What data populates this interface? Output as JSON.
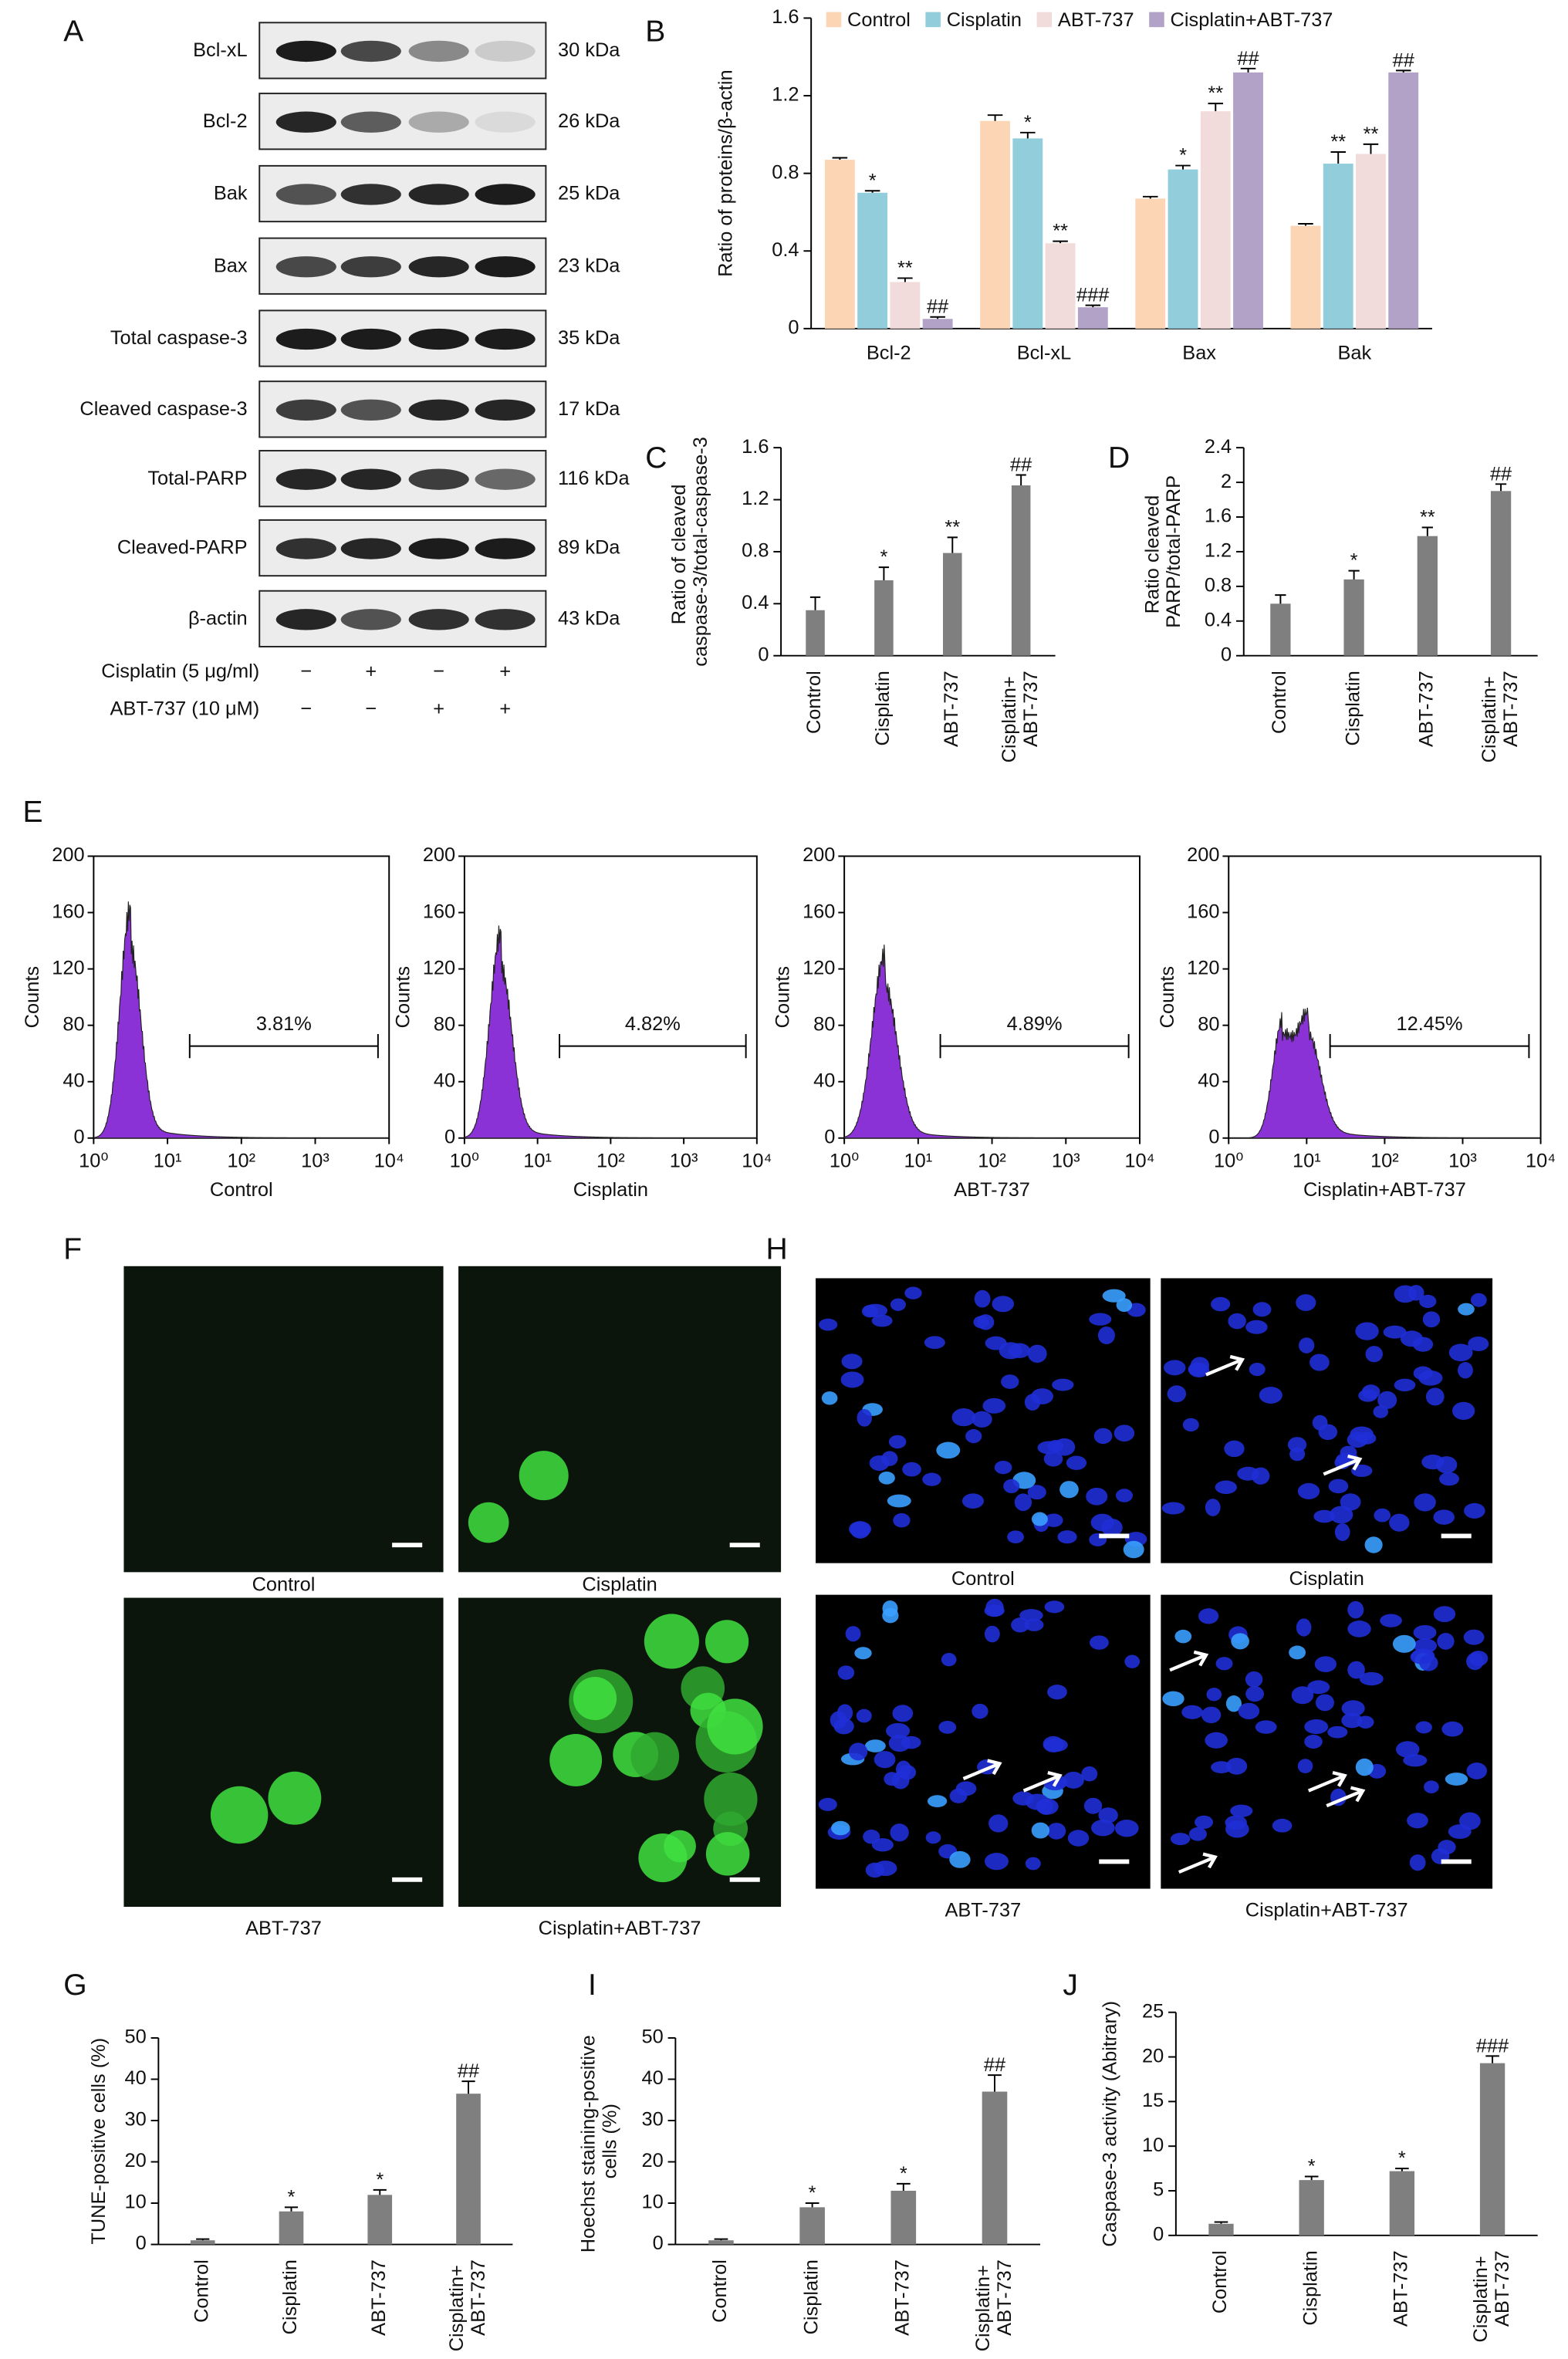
{
  "blot": {
    "label": "A",
    "proteins": [
      {
        "name": "Bcl-xL",
        "size": "30 kDa"
      },
      {
        "name": "Bcl-2",
        "size": "26 kDa"
      },
      {
        "name": "Bak",
        "size": "25 kDa"
      },
      {
        "name": "Bax",
        "size": "23 kDa"
      },
      {
        "name": "Total caspase-3",
        "size": "35 kDa"
      },
      {
        "name": "Cleaved caspase-3",
        "size": "17 kDa"
      },
      {
        "name": "Total-PARP",
        "size": "116 kDa"
      },
      {
        "name": "Cleaved-PARP",
        "size": "89 kDa"
      },
      {
        "name": "β-actin",
        "size": "43 kDa"
      }
    ],
    "treatments": [
      {
        "name": "Cisplatin (5 μg/ml)",
        "signs": [
          "−",
          "+",
          "−",
          "+"
        ]
      },
      {
        "name": "ABT-737 (10 μM)",
        "signs": [
          "−",
          "−",
          "+",
          "+"
        ]
      }
    ]
  },
  "panel_b": {
    "label": "B",
    "type": "bar",
    "ylabel": "Ratio of proteins/β-actin",
    "categories": [
      "Bcl-2",
      "Bcl-xL",
      "Bax",
      "Bak"
    ],
    "series": [
      {
        "name": "Control",
        "color": "#fcd5b4",
        "values": [
          0.87,
          1.07,
          0.67,
          0.53
        ],
        "errors": [
          0.01,
          0.03,
          0.01,
          0.01
        ],
        "annotations": [
          null,
          null,
          null,
          null
        ]
      },
      {
        "name": "Cisplatin",
        "color": "#92cddc",
        "values": [
          0.7,
          0.98,
          0.82,
          0.85
        ],
        "errors": [
          0.01,
          0.03,
          0.02,
          0.06
        ],
        "annotations": [
          "*",
          "*",
          "*",
          "**"
        ]
      },
      {
        "name": "ABT-737",
        "color": "#f2dcdb",
        "values": [
          0.24,
          0.44,
          1.12,
          0.9
        ],
        "errors": [
          0.02,
          0.01,
          0.04,
          0.05
        ],
        "annotations": [
          "**",
          "**",
          "**",
          "**"
        ]
      },
      {
        "name": "Cisplatin+ABT-737",
        "color": "#b3a2c7",
        "values": [
          0.05,
          0.11,
          1.32,
          1.32
        ],
        "errors": [
          0.01,
          0.01,
          0.02,
          0.01
        ],
        "annotations": [
          "##",
          "###",
          "##",
          "##"
        ]
      }
    ],
    "ylim": [
      0,
      1.6
    ],
    "yticks": [
      0,
      0.4,
      0.8,
      1.2,
      1.6
    ],
    "legend": "top"
  },
  "panel_c": {
    "label": "C",
    "type": "bar",
    "ylabel": "Ratio of cleaved caspase-3/total-caspase-3",
    "categories": [
      "Control",
      "Cisplatin",
      "ABT-737",
      "Cisplatin+ ABT-737"
    ],
    "color": "#7f7f7f",
    "values": [
      0.35,
      0.58,
      0.79,
      1.31
    ],
    "errors": [
      0.1,
      0.1,
      0.12,
      0.08
    ],
    "annotations": [
      null,
      "*",
      "**",
      "##"
    ],
    "ylim": [
      0,
      1.6
    ],
    "yticks": [
      0,
      0.4,
      0.8,
      1.2,
      1.6
    ]
  },
  "panel_d": {
    "label": "D",
    "type": "bar",
    "ylabel": "Ratio cleaved PARP/total-PARP",
    "categories": [
      "Control",
      "Cisplatin",
      "ABT-737",
      "Cisplatin+ ABT-737"
    ],
    "color": "#7f7f7f",
    "values": [
      0.6,
      0.88,
      1.38,
      1.9
    ],
    "errors": [
      0.1,
      0.1,
      0.1,
      0.08
    ],
    "annotations": [
      null,
      "*",
      "**",
      "##"
    ],
    "ylim": [
      0,
      2.4
    ],
    "yticks": [
      0,
      0.4,
      0.8,
      1.2,
      1.6,
      2,
      2.4
    ]
  },
  "panel_e": {
    "label": "E",
    "ylabel": "Counts",
    "color": "#8b32d6",
    "ylim": [
      0,
      200
    ],
    "yticks": [
      0,
      40,
      80,
      120,
      160,
      200
    ],
    "xscale": "log",
    "xlim": [
      1,
      10000
    ],
    "xticks": [
      {
        "value": 1,
        "label": "10⁰"
      },
      {
        "value": 10,
        "label": "10¹"
      },
      {
        "value": 100,
        "label": "10²"
      },
      {
        "value": 1000,
        "label": "10³"
      },
      {
        "value": 10000,
        "label": "10⁴"
      }
    ],
    "histograms": [
      {
        "xlabel": "Control",
        "percent": "3.81%"
      },
      {
        "xlabel": "Cisplatin",
        "percent": "4.82%"
      },
      {
        "xlabel": "ABT-737",
        "percent": "4.89%"
      },
      {
        "xlabel": "Cisplatin+ABT-737",
        "percent": "12.45%"
      }
    ]
  },
  "panel_f": {
    "label": "F",
    "captions": [
      "Control",
      "Cisplatin",
      "ABT-737",
      "Cisplatin+ABT-737"
    ]
  },
  "panel_h": {
    "label": "H",
    "captions": [
      "Control",
      "Cisplatin",
      "ABT-737",
      "Cisplatin+ABT-737"
    ]
  },
  "panel_g": {
    "label": "G",
    "type": "bar",
    "ylabel": "TUNE-positive cells (%)",
    "categories": [
      "Control",
      "Cisplatin",
      "ABT-737",
      "Cisplatin+ ABT-737"
    ],
    "color": "#7f7f7f",
    "values": [
      1,
      8,
      12,
      36.5
    ],
    "errors": [
      0.3,
      1,
      1.2,
      3
    ],
    "annotations": [
      null,
      "*",
      "*",
      "##"
    ],
    "ylim": [
      0,
      50
    ],
    "yticks": [
      0,
      10,
      20,
      30,
      40,
      50
    ]
  },
  "panel_i": {
    "label": "I",
    "type": "bar",
    "ylabel": "Hoechst staining-positive cells (%)",
    "categories": [
      "Control",
      "Cisplatin",
      "ABT-737",
      "Cisplatin+ ABT-737"
    ],
    "color": "#7f7f7f",
    "values": [
      1,
      9,
      13,
      37
    ],
    "errors": [
      0.3,
      1,
      1.7,
      4
    ],
    "annotations": [
      null,
      "*",
      "*",
      "##"
    ],
    "ylim": [
      0,
      50
    ],
    "yticks": [
      0,
      10,
      20,
      30,
      40,
      50
    ]
  },
  "panel_j": {
    "label": "J",
    "type": "bar",
    "ylabel": "Caspase-3 activity (Abitrary)",
    "categories": [
      "Control",
      "Cisplatin",
      "ABT-737",
      "Cisplatin+ ABT-737"
    ],
    "color": "#7f7f7f",
    "values": [
      1.3,
      6.2,
      7.2,
      19.3
    ],
    "errors": [
      0.2,
      0.4,
      0.3,
      0.8
    ],
    "annotations": [
      null,
      "*",
      "*",
      "###"
    ],
    "ylim": [
      0,
      25
    ],
    "yticks": [
      0,
      5,
      10,
      15,
      20,
      25
    ]
  }
}
